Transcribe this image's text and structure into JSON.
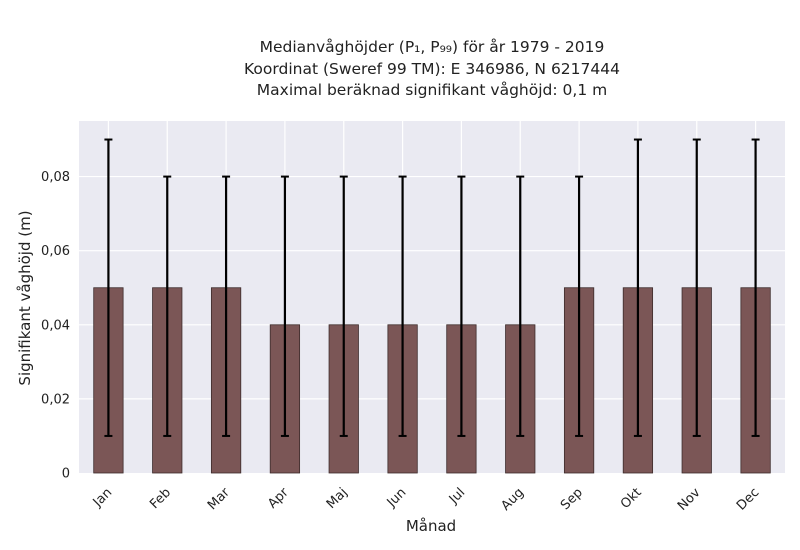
{
  "chart_data": {
    "type": "bar",
    "title_lines": [
      "Medianvåghöjder (P₁, P₉₉) för år 1979 - 2019",
      "Koordinat (Sweref 99 TM): E 346986, N 6217444",
      "Maximal beräknad signifikant våghöjd: 0,1 m"
    ],
    "xlabel": "Månad",
    "ylabel": "Signifikant våghöjd (m)",
    "categories": [
      "Jan",
      "Feb",
      "Mar",
      "Apr",
      "Maj",
      "Jun",
      "Jul",
      "Aug",
      "Sep",
      "Okt",
      "Nov",
      "Dec"
    ],
    "values": [
      0.05,
      0.05,
      0.05,
      0.04,
      0.04,
      0.04,
      0.04,
      0.04,
      0.05,
      0.05,
      0.05,
      0.05
    ],
    "error_low": [
      0.01,
      0.01,
      0.01,
      0.01,
      0.01,
      0.01,
      0.01,
      0.01,
      0.01,
      0.01,
      0.01,
      0.01
    ],
    "error_high": [
      0.09,
      0.08,
      0.08,
      0.08,
      0.08,
      0.08,
      0.08,
      0.08,
      0.08,
      0.09,
      0.09,
      0.09
    ],
    "ylim": [
      0,
      0.095
    ],
    "yticks": [
      0,
      0.02,
      0.04,
      0.06,
      0.08
    ],
    "ytick_labels": [
      "0",
      "0,02",
      "0,04",
      "0,06",
      "0,08"
    ],
    "grid": true,
    "colors": {
      "bar": "#7b5656",
      "bar_edge": "#3c2b2b",
      "error": "#000000",
      "plot_bg": "#eaeaf2",
      "grid": "#ffffff"
    }
  }
}
